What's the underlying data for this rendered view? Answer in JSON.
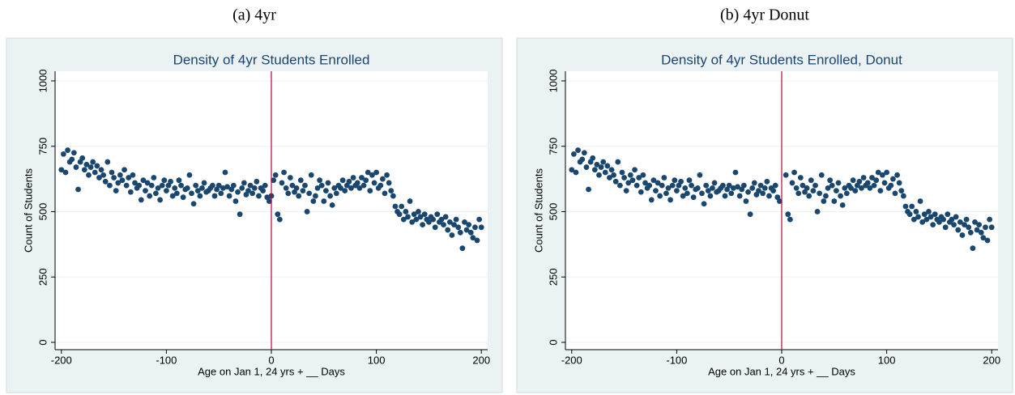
{
  "chart_data": [
    {
      "type": "scatter",
      "caption": "(a) 4yr",
      "title": "Density of 4yr Students Enrolled",
      "x_label": "Age on Jan 1, 24 yrs + __ Days",
      "y_label": "Count of Students",
      "color": "#1a476f",
      "xline": 0,
      "xline_color": "#c10534",
      "grid": true,
      "xlim": [
        -206,
        206
      ],
      "ylim": [
        -28,
        1037
      ],
      "xticks": [
        -200,
        -100,
        0,
        100,
        200
      ],
      "yticks": [
        0,
        250,
        500,
        750,
        1000
      ],
      "x": [
        -200,
        -198,
        -196,
        -194,
        -192,
        -190,
        -188,
        -186,
        -184,
        -182,
        -180,
        -178,
        -176,
        -174,
        -172,
        -170,
        -168,
        -166,
        -164,
        -162,
        -160,
        -158,
        -156,
        -154,
        -152,
        -150,
        -148,
        -146,
        -144,
        -142,
        -140,
        -138,
        -136,
        -134,
        -132,
        -130,
        -128,
        -126,
        -124,
        -122,
        -120,
        -118,
        -116,
        -114,
        -112,
        -110,
        -108,
        -106,
        -104,
        -102,
        -100,
        -98,
        -96,
        -94,
        -92,
        -90,
        -88,
        -86,
        -84,
        -82,
        -80,
        -78,
        -76,
        -74,
        -72,
        -70,
        -68,
        -66,
        -64,
        -62,
        -60,
        -58,
        -56,
        -54,
        -52,
        -50,
        -48,
        -46,
        -44,
        -42,
        -40,
        -38,
        -36,
        -34,
        -32,
        -30,
        -28,
        -26,
        -24,
        -22,
        -20,
        -18,
        -16,
        -14,
        -12,
        -10,
        -8,
        -6,
        -4,
        -2,
        0,
        2,
        4,
        6,
        8,
        10,
        12,
        14,
        16,
        18,
        20,
        22,
        24,
        26,
        28,
        30,
        32,
        34,
        36,
        38,
        40,
        42,
        44,
        46,
        48,
        50,
        52,
        54,
        56,
        58,
        60,
        62,
        64,
        66,
        68,
        70,
        72,
        74,
        76,
        78,
        80,
        82,
        84,
        86,
        88,
        90,
        92,
        94,
        96,
        98,
        100,
        102,
        104,
        106,
        108,
        110,
        112,
        114,
        116,
        118,
        120,
        122,
        124,
        126,
        128,
        130,
        132,
        134,
        136,
        138,
        140,
        142,
        144,
        146,
        148,
        150,
        152,
        154,
        156,
        158,
        160,
        162,
        164,
        166,
        168,
        170,
        172,
        174,
        176,
        178,
        180,
        182,
        184,
        186,
        188,
        190,
        192,
        194,
        196,
        198,
        200
      ],
      "values": [
        660,
        720,
        650,
        735,
        690,
        700,
        725,
        670,
        585,
        690,
        705,
        660,
        680,
        640,
        670,
        690,
        650,
        675,
        630,
        660,
        640,
        615,
        690,
        600,
        650,
        630,
        580,
        610,
        640,
        620,
        660,
        600,
        630,
        575,
        640,
        610,
        590,
        600,
        545,
        620,
        580,
        610,
        560,
        600,
        630,
        570,
        590,
        545,
        600,
        620,
        580,
        600,
        615,
        560,
        590,
        570,
        620,
        600,
        555,
        585,
        590,
        640,
        570,
        530,
        600,
        580,
        560,
        590,
        610,
        575,
        580,
        590,
        600,
        560,
        585,
        600,
        570,
        590,
        650,
        595,
        560,
        585,
        600,
        540,
        575,
        490,
        590,
        610,
        565,
        580,
        600,
        570,
        590,
        615,
        560,
        590,
        580,
        600,
        555,
        540,
        560,
        620,
        640,
        490,
        470,
        610,
        650,
        590,
        570,
        630,
        600,
        575,
        590,
        560,
        620,
        580,
        600,
        500,
        570,
        640,
        540,
        560,
        590,
        620,
        600,
        540,
        580,
        610,
        560,
        525,
        590,
        570,
        600,
        590,
        620,
        580,
        600,
        615,
        590,
        630,
        600,
        610,
        590,
        630,
        600,
        620,
        650,
        580,
        640,
        610,
        650,
        590,
        600,
        625,
        570,
        640,
        610,
        580,
        560,
        520,
        500,
        490,
        520,
        470,
        500,
        480,
        540,
        460,
        490,
        470,
        500,
        480,
        450,
        490,
        470,
        460,
        480,
        470,
        440,
        490,
        460,
        470,
        450,
        480,
        430,
        460,
        410,
        450,
        470,
        440,
        420,
        360,
        460,
        430,
        450,
        420,
        400,
        440,
        390,
        470,
        440
      ]
    },
    {
      "type": "scatter",
      "caption": "(b) 4yr Donut",
      "title": "Density of 4yr Students Enrolled, Donut",
      "x_label": "Age on Jan 1, 24 yrs + __ Days",
      "y_label": "Count of Students",
      "color": "#1a476f",
      "xline": 0,
      "xline_color": "#c10534",
      "grid": true,
      "xlim": [
        -206,
        206
      ],
      "ylim": [
        -28,
        1037
      ],
      "xticks": [
        -200,
        -100,
        0,
        100,
        200
      ],
      "yticks": [
        0,
        250,
        500,
        750,
        1000
      ],
      "x": [
        -200,
        -198,
        -196,
        -194,
        -192,
        -190,
        -188,
        -186,
        -184,
        -182,
        -180,
        -178,
        -176,
        -174,
        -172,
        -170,
        -168,
        -166,
        -164,
        -162,
        -160,
        -158,
        -156,
        -154,
        -152,
        -150,
        -148,
        -146,
        -144,
        -142,
        -140,
        -138,
        -136,
        -134,
        -132,
        -130,
        -128,
        -126,
        -124,
        -122,
        -120,
        -118,
        -116,
        -114,
        -112,
        -110,
        -108,
        -106,
        -104,
        -102,
        -100,
        -98,
        -96,
        -94,
        -92,
        -90,
        -88,
        -86,
        -84,
        -82,
        -80,
        -78,
        -76,
        -74,
        -72,
        -70,
        -68,
        -66,
        -64,
        -62,
        -60,
        -58,
        -56,
        -54,
        -52,
        -50,
        -48,
        -46,
        -44,
        -42,
        -40,
        -38,
        -36,
        -34,
        -32,
        -30,
        -28,
        -26,
        -24,
        -22,
        -20,
        -18,
        -16,
        -14,
        -12,
        -10,
        -8,
        -6,
        -4,
        -2,
        4,
        6,
        8,
        10,
        12,
        14,
        16,
        18,
        20,
        22,
        24,
        26,
        28,
        30,
        32,
        34,
        36,
        38,
        40,
        42,
        44,
        46,
        48,
        50,
        52,
        54,
        56,
        58,
        60,
        62,
        64,
        66,
        68,
        70,
        72,
        74,
        76,
        78,
        80,
        82,
        84,
        86,
        88,
        90,
        92,
        94,
        96,
        98,
        100,
        102,
        104,
        106,
        108,
        110,
        112,
        114,
        116,
        118,
        120,
        122,
        124,
        126,
        128,
        130,
        132,
        134,
        136,
        138,
        140,
        142,
        144,
        146,
        148,
        150,
        152,
        154,
        156,
        158,
        160,
        162,
        164,
        166,
        168,
        170,
        172,
        174,
        176,
        178,
        180,
        182,
        184,
        186,
        188,
        190,
        192,
        194,
        196,
        198,
        200
      ],
      "values": [
        660,
        720,
        650,
        735,
        690,
        700,
        725,
        670,
        585,
        690,
        705,
        660,
        680,
        640,
        670,
        690,
        650,
        675,
        630,
        660,
        640,
        615,
        690,
        600,
        650,
        630,
        580,
        610,
        640,
        620,
        660,
        600,
        630,
        575,
        640,
        610,
        590,
        600,
        545,
        620,
        580,
        610,
        560,
        600,
        630,
        570,
        590,
        545,
        600,
        620,
        580,
        600,
        615,
        560,
        590,
        570,
        620,
        600,
        555,
        585,
        590,
        640,
        570,
        530,
        600,
        580,
        560,
        590,
        610,
        575,
        580,
        590,
        600,
        560,
        585,
        600,
        570,
        590,
        650,
        595,
        560,
        585,
        600,
        540,
        575,
        490,
        590,
        610,
        565,
        580,
        600,
        570,
        590,
        615,
        560,
        590,
        580,
        600,
        555,
        540,
        640,
        490,
        470,
        610,
        650,
        590,
        570,
        630,
        600,
        575,
        590,
        560,
        620,
        580,
        600,
        500,
        570,
        640,
        540,
        560,
        590,
        620,
        600,
        540,
        580,
        610,
        560,
        525,
        590,
        570,
        600,
        590,
        620,
        580,
        600,
        615,
        590,
        630,
        600,
        610,
        590,
        630,
        600,
        620,
        650,
        580,
        640,
        610,
        650,
        590,
        600,
        625,
        570,
        640,
        610,
        580,
        560,
        520,
        500,
        490,
        520,
        470,
        500,
        480,
        540,
        460,
        490,
        470,
        500,
        480,
        450,
        490,
        470,
        460,
        480,
        470,
        440,
        490,
        460,
        470,
        450,
        480,
        430,
        460,
        410,
        450,
        470,
        440,
        420,
        360,
        460,
        430,
        450,
        420,
        400,
        440,
        390,
        470,
        440
      ]
    }
  ]
}
